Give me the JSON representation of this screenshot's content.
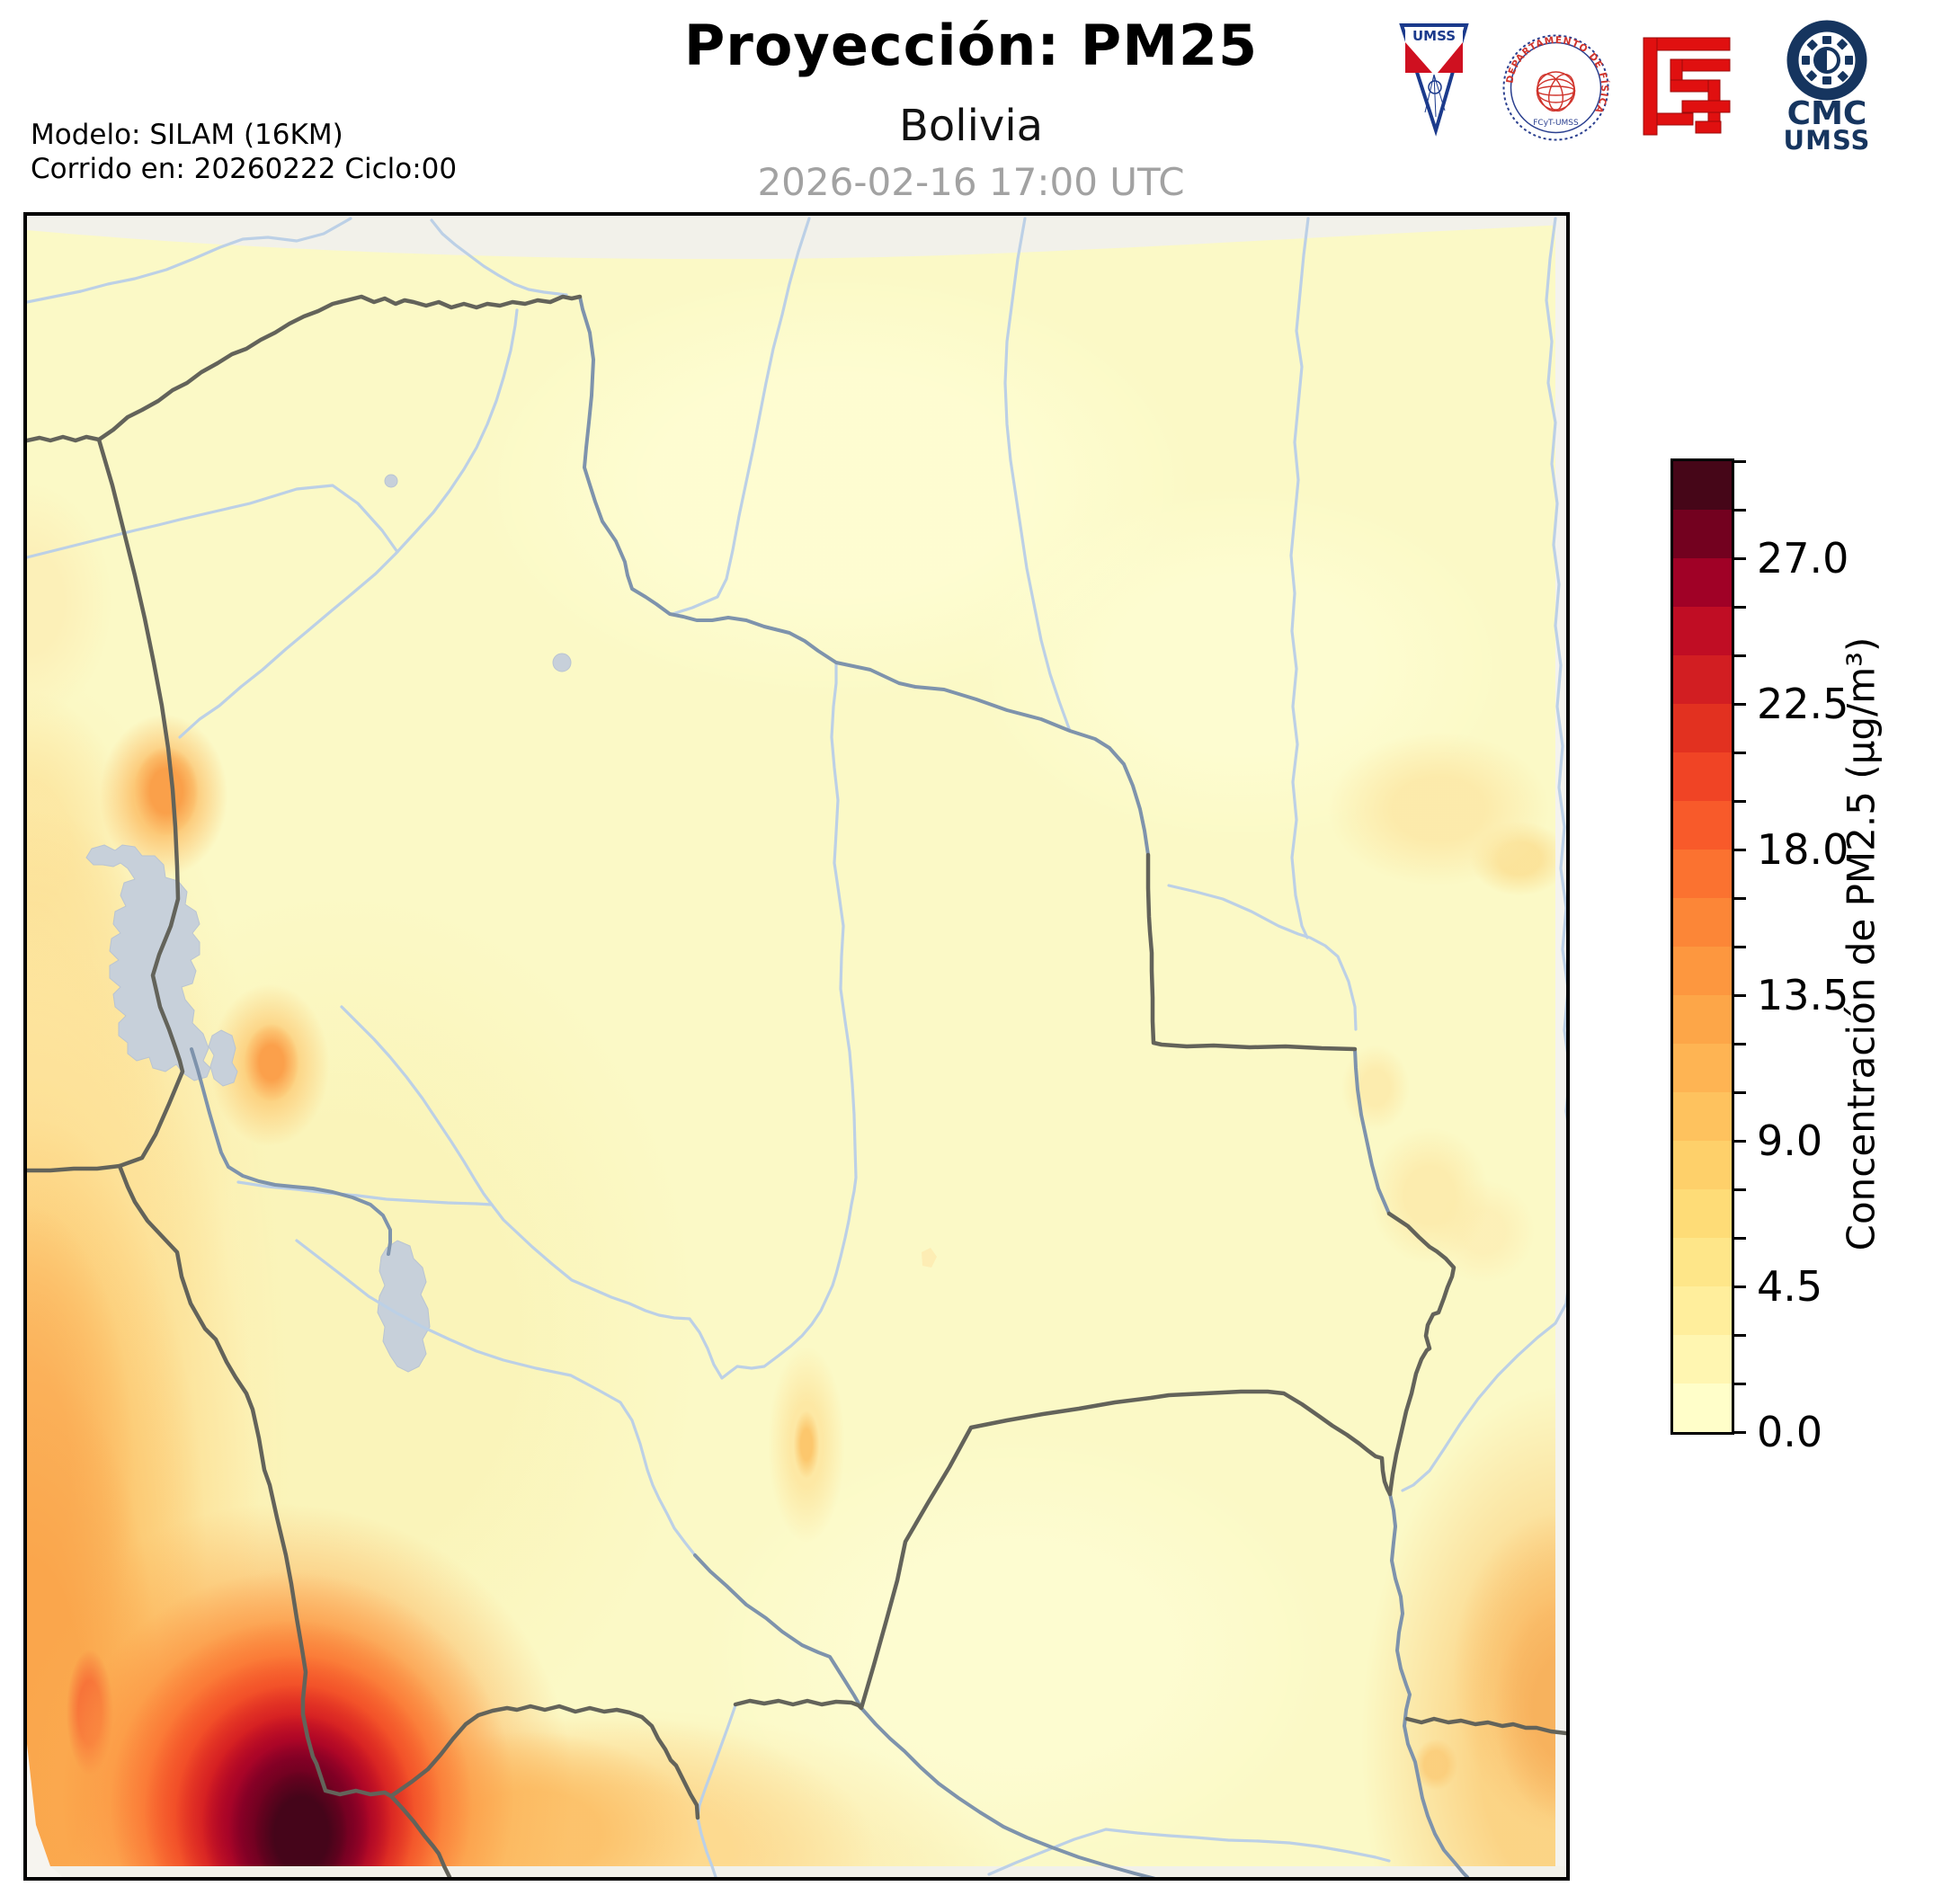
{
  "header": {
    "title": "Proyección: PM25",
    "subtitle": "Bolivia",
    "datetime": "2026-02-16 17:00 UTC",
    "model_line1": "Modelo: SILAM (16KM)",
    "model_line2": "Corrido en: 20260222 Ciclo:00"
  },
  "logos": {
    "umss_label": "UMSS",
    "fisica_label": "DEPARTAMENTO DE FÍSICA",
    "fisica_sub": "FCyT-UMSS",
    "cmc_line1": "CMC",
    "cmc_line2": "UMSS"
  },
  "colorbar": {
    "label": "Concentración de PM2.5 (µg/m³)",
    "tick_labels": [
      "0.0",
      "4.5",
      "9.0",
      "13.5",
      "18.0",
      "22.5",
      "27.0"
    ],
    "min": 0,
    "max": 30,
    "segments_per_label": 3,
    "segment_colors": [
      "#fffec9",
      "#fff6b1",
      "#ffee9c",
      "#fee689",
      "#fedc77",
      "#fed06a",
      "#fec25e",
      "#feb453",
      "#fda648",
      "#fd973f",
      "#fc8637",
      "#fb7230",
      "#f85a2a",
      "#f04425",
      "#e23120",
      "#d21e22",
      "#c00d24",
      "#a00126",
      "#73011f",
      "#460618"
    ]
  },
  "map": {
    "region": "Bolivia",
    "background_color": "#fbf9c6",
    "border_color": "#63635a",
    "river_color": "#bcd0e6",
    "major_river_color": "#7e93ac",
    "lake_color": "#c7d0da",
    "hotspot_max_color": "#45051a",
    "out_of_domain_color": "#f2f1ea"
  }
}
